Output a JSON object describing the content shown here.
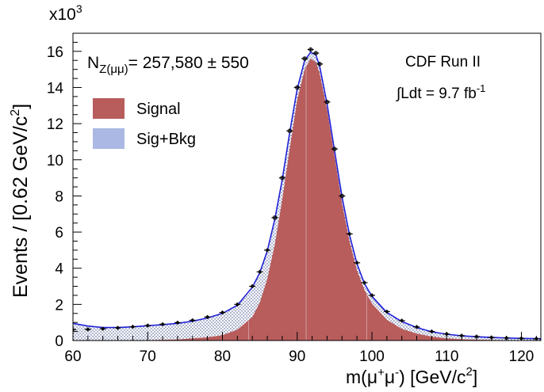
{
  "chart_data": {
    "type": "histogram",
    "title": "",
    "xlabel": "m(μ⁺μ⁻) [GeV/c²]",
    "xlabel_parts": {
      "main": "m(μ",
      "sup1": "+",
      "mid": "μ",
      "sup2": "-",
      "end": ") [GeV/c",
      "sup3": "2",
      "close": "]"
    },
    "ylabel": "Events / [0.62 GeV/c²]",
    "ylabel_parts": {
      "main": "Events / [0.62 GeV/c",
      "sup": "2",
      "close": "]"
    },
    "y_multiplier": {
      "base": "x10",
      "exp": "3"
    },
    "xlim": [
      60,
      122.6
    ],
    "ylim": [
      0,
      17
    ],
    "x_ticks": [
      60,
      70,
      80,
      90,
      100,
      110,
      120
    ],
    "y_ticks": [
      0,
      2,
      4,
      6,
      8,
      10,
      12,
      14,
      16
    ],
    "experiment_label": "CDF Run II",
    "luminosity": {
      "prefix": "∫Ldt = 9.7 fb",
      "sup": "-1"
    },
    "yield": {
      "N": "N",
      "sub": "Z(μμ)",
      "value": "= 257,580 ± 550"
    },
    "legend": [
      {
        "label": "Signal",
        "color": "#b85c5c"
      },
      {
        "label": "Sig+Bkg",
        "color": "#aab8e3"
      }
    ],
    "colors": {
      "signal": "#b85c5c",
      "background_fill": "#aab8e3",
      "fit_line": "#2020d8",
      "data": "#000000"
    },
    "series": [
      {
        "name": "Data (x10^3 events)",
        "x": [
          60,
          62,
          64,
          66,
          68,
          70,
          72,
          74,
          76,
          78,
          80,
          82,
          84,
          85,
          86,
          87,
          88,
          89,
          90,
          91,
          91.8,
          92.5,
          93,
          94,
          95,
          96,
          97,
          98,
          99,
          100,
          102,
          104,
          106,
          108,
          110,
          112,
          114,
          116,
          118,
          120,
          122
        ],
        "y": [
          0.6,
          0.62,
          0.65,
          0.7,
          0.76,
          0.83,
          0.9,
          0.99,
          1.12,
          1.3,
          1.55,
          2.0,
          3.0,
          3.8,
          5.0,
          6.8,
          9.0,
          11.6,
          14.0,
          15.6,
          16.1,
          15.9,
          15.3,
          13.2,
          10.6,
          8.0,
          5.9,
          4.3,
          3.2,
          2.5,
          1.6,
          1.1,
          0.75,
          0.5,
          0.36,
          0.27,
          0.22,
          0.17,
          0.14,
          0.12,
          0.1
        ]
      },
      {
        "name": "Sig+Bkg fit (x10^3 events)",
        "x": [
          60,
          62,
          64,
          66,
          68,
          70,
          72,
          74,
          76,
          78,
          80,
          82,
          84,
          85,
          86,
          87,
          88,
          89,
          90,
          91,
          91.8,
          92.5,
          93,
          94,
          95,
          96,
          97,
          98,
          99,
          100,
          102,
          104,
          106,
          108,
          110,
          112,
          114,
          116,
          118,
          120,
          122.6
        ],
        "y": [
          0.95,
          0.8,
          0.72,
          0.72,
          0.76,
          0.82,
          0.88,
          0.95,
          1.07,
          1.25,
          1.5,
          1.95,
          2.95,
          3.75,
          4.95,
          6.7,
          8.9,
          11.5,
          13.9,
          15.5,
          15.95,
          15.8,
          15.2,
          13.1,
          10.5,
          7.95,
          5.85,
          4.25,
          3.15,
          2.45,
          1.55,
          1.05,
          0.72,
          0.48,
          0.35,
          0.26,
          0.21,
          0.17,
          0.14,
          0.12,
          0.1
        ]
      },
      {
        "name": "Signal (x10^3 events)",
        "x": [
          66,
          70,
          74,
          78,
          80,
          82,
          84,
          85,
          86,
          87,
          88,
          89,
          90,
          91,
          91.8,
          92.5,
          93,
          94,
          95,
          96,
          97,
          98,
          99,
          100,
          102,
          104,
          106,
          108,
          110,
          112,
          116,
          120,
          122.6
        ],
        "y": [
          0.0,
          0.02,
          0.06,
          0.18,
          0.3,
          0.6,
          1.3,
          2.1,
          3.4,
          5.3,
          7.8,
          10.6,
          13.3,
          15.0,
          15.6,
          15.4,
          14.8,
          12.8,
          10.2,
          7.6,
          5.5,
          3.9,
          2.8,
          2.05,
          1.15,
          0.65,
          0.38,
          0.22,
          0.12,
          0.07,
          0.03,
          0.01,
          0.0
        ]
      }
    ]
  }
}
